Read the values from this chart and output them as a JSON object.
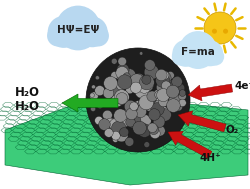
{
  "bg_color": "#ffffff",
  "graphene_color": "#3dcc7a",
  "graphene_edge": "#006633",
  "graphene_dark": "#1a7a44",
  "cloud1_color": "#b8d8f0",
  "cloud2_color": "#c5e3f5",
  "sun_color": "#f5c518",
  "sun_ray_color": "#e8b800",
  "arrow_red": "#cc1111",
  "arrow_green": "#22aa22",
  "arrow_green_edge": "#006600",
  "text_h2o": "H₂O",
  "text_4eminus": "4e⁻",
  "text_o2": "O₂",
  "text_4hp": "4H⁺",
  "text_cloud1": "HΨ=EΨ",
  "text_cloud2": "F=ma"
}
